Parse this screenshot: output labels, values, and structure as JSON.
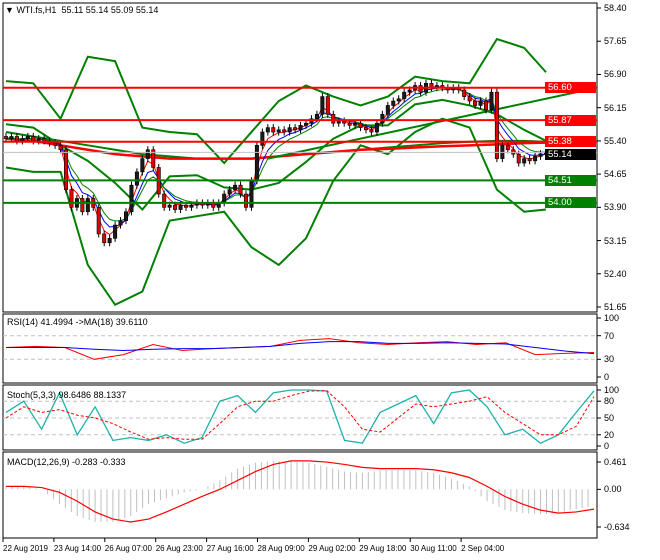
{
  "header": {
    "symbol": "WTI.fs,H1",
    "ohlc": "55.11 55.14 55.09 55.14",
    "menu_icon": "triangle-down-icon"
  },
  "colors": {
    "bull": "#1a1a1a",
    "bear": "#e00000",
    "bands": "#008000",
    "resistance": "#ff0000",
    "support": "#008000",
    "rsi": "#ff0000",
    "rsi_ma": "#0000ff",
    "stoch_k": "#20b2aa",
    "stoch_d": "#ff0000",
    "macd_hist": "#c0c0c0",
    "macd_signal": "#ff0000"
  },
  "chart_data": [
    {
      "type": "candlestick",
      "title": "WTI.fs,H1",
      "ylim": [
        51.65,
        58.4
      ],
      "y_ticks": [
        "58.40",
        "57.65",
        "56.90",
        "56.15",
        "55.40",
        "54.65",
        "53.90",
        "53.15",
        "52.40",
        "51.65"
      ],
      "x_ticks": [
        "22 Aug 2019",
        "23 Aug 14:00",
        "26 Aug 07:00",
        "26 Aug 23:00",
        "27 Aug 16:00",
        "28 Aug 09:00",
        "29 Aug 02:00",
        "29 Aug 18:00",
        "30 Aug 11:00",
        "2 Sep 04:00"
      ],
      "closes": [
        55.45,
        55.5,
        55.4,
        55.45,
        55.5,
        55.4,
        55.45,
        55.4,
        55.35,
        55.3,
        55.2,
        54.3,
        53.9,
        54.1,
        53.8,
        54.1,
        53.9,
        53.3,
        53.1,
        53.2,
        53.5,
        53.6,
        53.8,
        54.4,
        54.7,
        55.0,
        55.2,
        54.8,
        54.2,
        53.9,
        53.95,
        53.85,
        53.95,
        53.9,
        53.95,
        54.0,
        53.95,
        54.0,
        53.9,
        54.0,
        54.2,
        54.3,
        54.4,
        54.2,
        53.9,
        54.5,
        55.3,
        55.6,
        55.7,
        55.6,
        55.65,
        55.6,
        55.7,
        55.65,
        55.75,
        55.8,
        55.9,
        56.0,
        56.4,
        56.0,
        55.8,
        55.85,
        55.8,
        55.75,
        55.8,
        55.7,
        55.65,
        55.6,
        55.8,
        56.0,
        56.2,
        56.3,
        56.35,
        56.5,
        56.55,
        56.65,
        56.5,
        56.7,
        56.6,
        56.65,
        56.6,
        56.55,
        56.6,
        56.55,
        56.4,
        56.3,
        56.2,
        56.3,
        56.1,
        56.5,
        55.0,
        55.3,
        55.2,
        55.1,
        54.9,
        55.0,
        54.95,
        55.05,
        55.11,
        55.14
      ],
      "current_price": "55.14",
      "levels": [
        {
          "value": "56.60",
          "kind": "resistance"
        },
        {
          "value": "55.87",
          "kind": "resistance"
        },
        {
          "value": "55.38",
          "kind": "resistance"
        },
        {
          "value": "54.51",
          "kind": "support"
        },
        {
          "value": "54.00",
          "kind": "support"
        }
      ],
      "bollinger_upper": [
        56.75,
        56.7,
        55.9,
        57.3,
        57.2,
        55.7,
        55.6,
        55.55,
        54.9,
        55.6,
        56.3,
        56.65,
        56.4,
        56.2,
        56.4,
        56.85,
        56.75,
        56.7,
        57.7,
        57.5,
        56.95
      ],
      "bollinger_lower": [
        54.8,
        54.7,
        54.7,
        52.6,
        51.7,
        52.0,
        53.6,
        53.7,
        53.8,
        53.0,
        52.6,
        53.2,
        54.5,
        55.3,
        55.1,
        55.6,
        55.9,
        55.7,
        54.3,
        53.8,
        53.85
      ],
      "long_ma_red": [
        55.45,
        55.4,
        55.3,
        55.2,
        55.1,
        55.05,
        55.0,
        55.0,
        55.0,
        55.0,
        55.05,
        55.1,
        55.15,
        55.2,
        55.22,
        55.25,
        55.28,
        55.3,
        55.32,
        55.35,
        55.36
      ],
      "long_ma_green": [
        55.6,
        55.5,
        55.4,
        55.3,
        55.2,
        55.1,
        55.05,
        55.0,
        55.0,
        55.0,
        55.05,
        55.1,
        55.15,
        55.2,
        55.25,
        55.3,
        55.35,
        55.38,
        55.4,
        55.4,
        55.38
      ],
      "trendline": [
        [
          48,
          55.0
        ],
        [
          99,
          56.6
        ]
      ]
    },
    {
      "type": "line",
      "title": "RSI(14) 41.4994  ->MA(18) 39.6110",
      "ylim": [
        0,
        100
      ],
      "y_ticks": [
        "100",
        "70",
        "30",
        "0"
      ],
      "levels": [
        70,
        30
      ],
      "series": [
        {
          "name": "RSI(14)",
          "values": [
            50,
            52,
            50,
            30,
            38,
            55,
            45,
            48,
            50,
            52,
            62,
            65,
            58,
            55,
            58,
            60,
            55,
            58,
            38,
            40,
            41.5
          ]
        },
        {
          "name": "MA(18)",
          "values": [
            50,
            50,
            50,
            47,
            45,
            47,
            48,
            48,
            50,
            52,
            57,
            60,
            60,
            57,
            57,
            58,
            57,
            56,
            50,
            44,
            39.6
          ]
        }
      ]
    },
    {
      "type": "line",
      "title": "Stoch(5,3,3) 98.6486 88.1337",
      "ylim": [
        0,
        100
      ],
      "y_ticks": [
        "100",
        "80",
        "50",
        "20",
        "0"
      ],
      "levels": [
        80,
        50,
        20
      ],
      "series": [
        {
          "name": "%K",
          "values": [
            60,
            80,
            30,
            95,
            20,
            70,
            10,
            15,
            10,
            20,
            5,
            15,
            80,
            90,
            60,
            95,
            100,
            100,
            98,
            10,
            5,
            60,
            75,
            90,
            40,
            95,
            100,
            70,
            20,
            30,
            5,
            20,
            60,
            98.6
          ]
        },
        {
          "name": "%D",
          "values": [
            50,
            70,
            60,
            65,
            55,
            50,
            40,
            25,
            12,
            15,
            12,
            12,
            40,
            70,
            80,
            80,
            90,
            98,
            99,
            70,
            30,
            25,
            50,
            75,
            70,
            75,
            80,
            88,
            60,
            40,
            20,
            20,
            35,
            88.1
          ]
        }
      ]
    },
    {
      "type": "bar",
      "title": "MACD(12,26,9) -0.283 -0.333",
      "ylim": [
        -0.634,
        0.461
      ],
      "y_ticks": [
        "0.461",
        "0.00",
        "-0.634"
      ],
      "series": [
        {
          "name": "MACD",
          "values": [
            0.05,
            0.05,
            0.0,
            -0.25,
            -0.45,
            -0.55,
            -0.55,
            -0.45,
            -0.25,
            -0.15,
            -0.05,
            0.0,
            0.15,
            0.35,
            0.45,
            0.48,
            0.47,
            0.45,
            0.38,
            0.3,
            0.28,
            0.32,
            0.33,
            0.32,
            0.28,
            0.18,
            0.05,
            -0.2,
            -0.35,
            -0.4,
            -0.42,
            -0.4,
            -0.33,
            -0.283
          ]
        },
        {
          "name": "Signal",
          "values": [
            0.05,
            0.05,
            0.03,
            -0.05,
            -0.2,
            -0.38,
            -0.5,
            -0.55,
            -0.5,
            -0.38,
            -0.25,
            -0.12,
            0.0,
            0.15,
            0.3,
            0.42,
            0.48,
            0.48,
            0.46,
            0.42,
            0.37,
            0.35,
            0.35,
            0.35,
            0.33,
            0.28,
            0.2,
            0.05,
            -0.12,
            -0.25,
            -0.35,
            -0.4,
            -0.38,
            -0.333
          ]
        }
      ]
    }
  ]
}
